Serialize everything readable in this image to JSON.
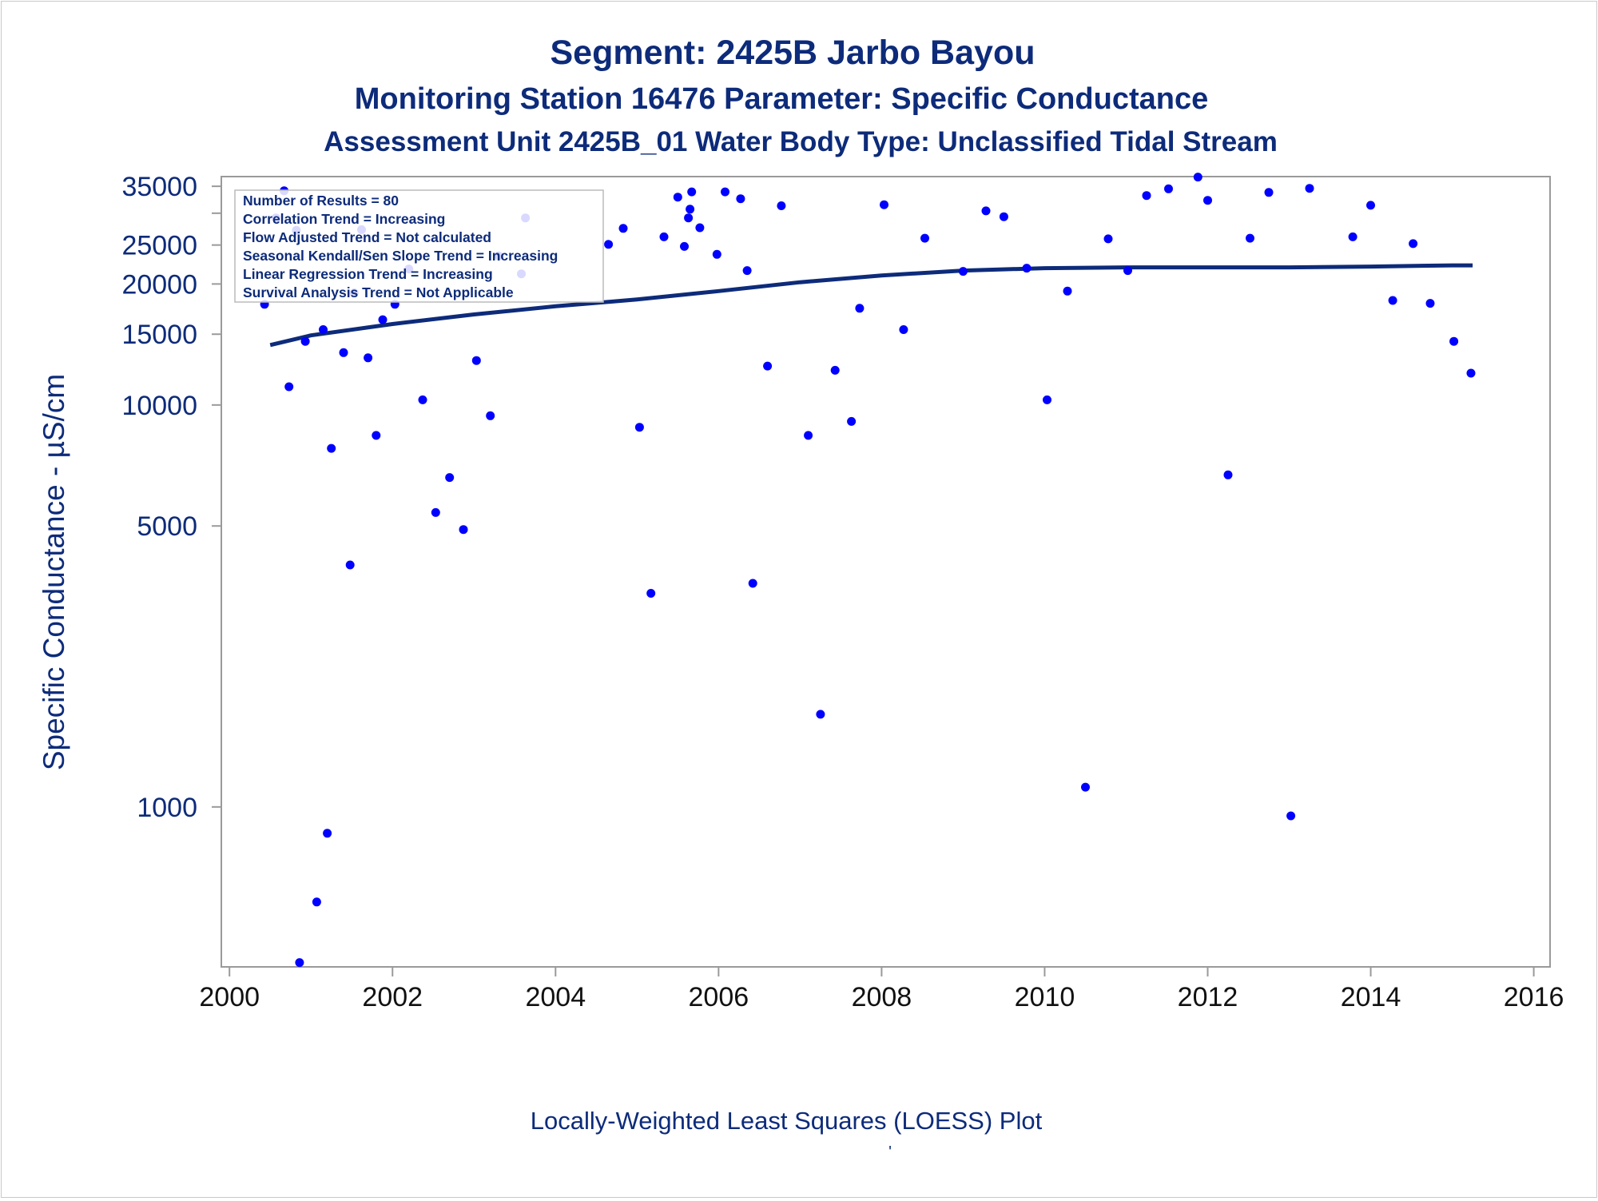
{
  "chart_data": {
    "type": "scatter",
    "title": "Segment: 2425B  Jarbo Bayou",
    "subtitle_1": "Monitoring Station 16476 Parameter: Specific Conductance",
    "subtitle_2": "Assessment Unit 2425B_01   Water Body Type: Unclassified Tidal Stream",
    "ylabel": "Specific Conductance -  µS/cm",
    "xlabel": "Locally-Weighted Least Squares (LOESS) Plot",
    "footnote": "'",
    "xlim": [
      1999.9,
      2016.2
    ],
    "ylim": [
      400,
      37000
    ],
    "y_scale": "log",
    "x_ticks": [
      2000,
      2002,
      2004,
      2006,
      2008,
      2010,
      2012,
      2014,
      2016
    ],
    "y_ticks": [
      1000,
      5000,
      10000,
      15000,
      20000,
      25000,
      35000
    ],
    "y_minor_ticks": [
      30000
    ],
    "grid": false,
    "colors": {
      "points": "#0000ff",
      "trend": "#0d2b7a",
      "text": "#0d2b7a",
      "axes": "#9a9a9a",
      "ticklabels": "#111111"
    },
    "legend": {
      "placement": "top-left",
      "lines": [
        "Number of Results = 80",
        "Correlation Trend = Increasing",
        "Flow Adjusted Trend = Not calculated",
        "Seasonal Kendall/Sen Slope Trend = Increasing",
        "Linear Regression Trend = Increasing",
        "Survival Analysis Trend = Not Applicable"
      ]
    },
    "series": [
      {
        "type": "scatter",
        "x": [
          2000.43,
          2000.57,
          2000.67,
          2000.73,
          2000.82,
          2000.86,
          2000.93,
          2001.07,
          2001.15,
          2001.2,
          2001.25,
          2001.4,
          2001.48,
          2001.53,
          2001.62,
          2001.7,
          2001.8,
          2001.88,
          2002.03,
          2002.2,
          2002.37,
          2002.53,
          2002.7,
          2002.87,
          2003.03,
          2003.2,
          2003.3,
          2003.58,
          2003.63,
          2004.65,
          2004.83,
          2005.03,
          2005.17,
          2005.33,
          2005.5,
          2005.58,
          2005.63,
          2005.65,
          2005.67,
          2005.77,
          2005.98,
          2006.08,
          2006.27,
          2006.35,
          2006.42,
          2006.6,
          2006.77,
          2007.1,
          2007.25,
          2007.43,
          2007.63,
          2007.73,
          2008.03,
          2008.27,
          2008.53,
          2009.0,
          2009.28,
          2009.5,
          2009.78,
          2010.03,
          2010.28,
          2010.5,
          2010.78,
          2011.02,
          2011.25,
          2011.52,
          2011.88,
          2012.0,
          2012.25,
          2012.52,
          2012.75,
          2013.02,
          2013.25,
          2013.78,
          2014.0,
          2014.27,
          2014.52,
          2014.73,
          2015.02,
          2015.23
        ],
        "y": [
          17800,
          29200,
          34100,
          11100,
          27200,
          410,
          14400,
          580,
          15400,
          860,
          7800,
          13500,
          4000,
          19000,
          27300,
          13100,
          8400,
          16300,
          17800,
          21800,
          10300,
          5400,
          6600,
          4900,
          12900,
          9400,
          23500,
          21200,
          29200,
          25100,
          27500,
          8800,
          3400,
          26200,
          32900,
          24800,
          29200,
          30700,
          33900,
          27600,
          23700,
          33900,
          32600,
          21600,
          3600,
          12500,
          31300,
          8400,
          1700,
          12200,
          9100,
          17400,
          31500,
          15400,
          26000,
          21500,
          30400,
          29400,
          21900,
          10300,
          19200,
          1120,
          25900,
          21600,
          33200,
          34500,
          36900,
          32300,
          6700,
          26000,
          33800,
          950,
          34600,
          26200,
          31400,
          18200,
          25200,
          17900,
          14400,
          12000
        ]
      },
      {
        "type": "line",
        "x": [
          2000.5,
          2001,
          2002,
          2003,
          2004,
          2005,
          2006,
          2007,
          2008,
          2009,
          2010,
          2011,
          2012,
          2013,
          2014,
          2015,
          2015.25
        ],
        "y": [
          14100,
          14900,
          15900,
          16800,
          17600,
          18300,
          19200,
          20200,
          21000,
          21600,
          21900,
          22000,
          22000,
          22000,
          22100,
          22250,
          22250
        ]
      }
    ]
  }
}
